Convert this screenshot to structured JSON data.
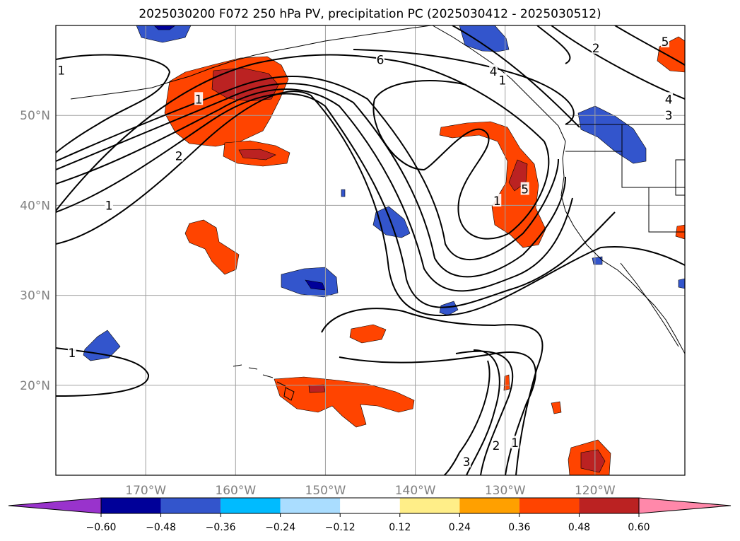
{
  "title": "2025030200 F072 250 hPa PV, precipitation PC (2025030412 - 2025030512)",
  "map": {
    "lon_range": [
      -180,
      -110
    ],
    "lat_range": [
      10,
      60
    ],
    "lon_ticks": [
      {
        "value": -170,
        "label": "170°W"
      },
      {
        "value": -160,
        "label": "160°W"
      },
      {
        "value": -150,
        "label": "150°W"
      },
      {
        "value": -140,
        "label": "140°W"
      },
      {
        "value": -130,
        "label": "130°W"
      },
      {
        "value": -120,
        "label": "120°W"
      }
    ],
    "lat_ticks": [
      {
        "value": 20,
        "label": "20°N"
      },
      {
        "value": 30,
        "label": "30°N"
      },
      {
        "value": 40,
        "label": "40°N"
      },
      {
        "value": 50,
        "label": "50°N"
      }
    ],
    "grid": true,
    "tick_label_color": "#808080"
  },
  "contour_labels": [
    {
      "text": "6",
      "lon": -143.9,
      "lat": 56.2
    },
    {
      "text": "1",
      "lon": -179.4,
      "lat": 55.0
    },
    {
      "text": "1",
      "lon": -164.1,
      "lat": 51.8
    },
    {
      "text": "2",
      "lon": -166.3,
      "lat": 45.5
    },
    {
      "text": "1",
      "lon": -174.1,
      "lat": 40.0
    },
    {
      "text": "4",
      "lon": -131.3,
      "lat": 54.9
    },
    {
      "text": "1",
      "lon": -130.3,
      "lat": 53.9
    },
    {
      "text": "2",
      "lon": -119.9,
      "lat": 57.5
    },
    {
      "text": "5",
      "lon": -112.2,
      "lat": 58.2
    },
    {
      "text": "4",
      "lon": -111.8,
      "lat": 51.8
    },
    {
      "text": "3",
      "lon": -111.8,
      "lat": 50.0
    },
    {
      "text": "1",
      "lon": -130.9,
      "lat": 40.5
    },
    {
      "text": "5",
      "lon": -127.8,
      "lat": 41.8
    },
    {
      "text": "1",
      "lon": -178.2,
      "lat": 23.6
    },
    {
      "text": "3",
      "lon": -134.3,
      "lat": 11.5
    },
    {
      "text": "2",
      "lon": -131.0,
      "lat": 13.3
    },
    {
      "text": "1",
      "lon": -128.9,
      "lat": 13.6
    }
  ],
  "colorbar": {
    "levels": [
      -0.6,
      -0.48,
      -0.36,
      -0.24,
      -0.12,
      0.12,
      0.24,
      0.36,
      0.48,
      0.6
    ],
    "tick_labels": [
      "−0.60",
      "−0.48",
      "−0.36",
      "−0.24",
      "−0.12",
      "0.12",
      "0.24",
      "0.36",
      "0.48",
      "0.60"
    ],
    "under_color": "#9933cc",
    "over_color": "#ff88aa",
    "colors": [
      "#000099",
      "#3355cc",
      "#00bbff",
      "#aaddff",
      "#ffffff",
      "#ffee88",
      "#ffa000",
      "#ff4400",
      "#bb2222"
    ]
  }
}
